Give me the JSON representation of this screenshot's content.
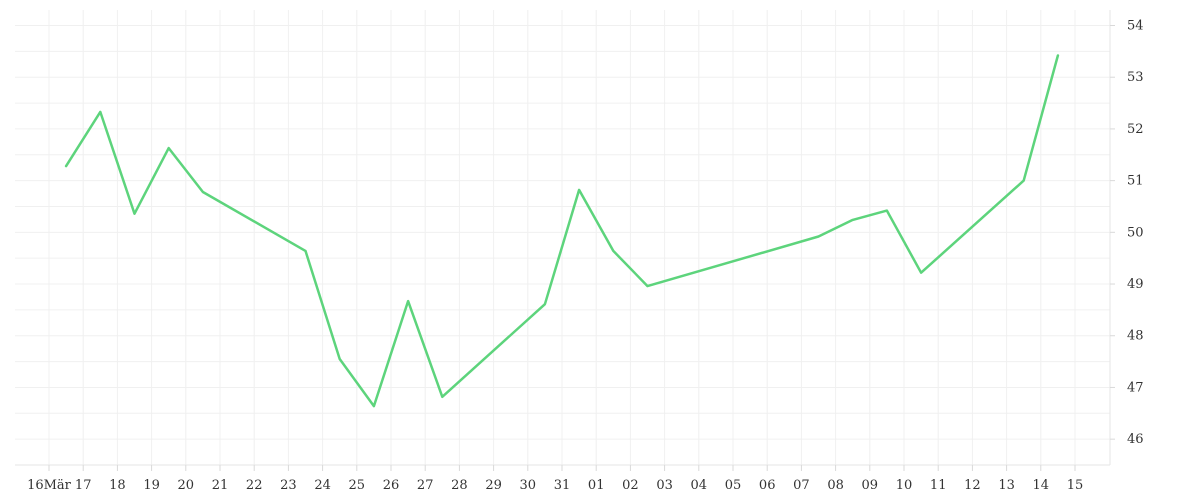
{
  "chart_data": {
    "type": "line",
    "title": "",
    "xlabel": "",
    "ylabel": "",
    "x_tick_labels": [
      "16Mär",
      "17",
      "18",
      "19",
      "20",
      "21",
      "22",
      "23",
      "24",
      "25",
      "26",
      "27",
      "28",
      "29",
      "30",
      "31",
      "01",
      "02",
      "03",
      "04",
      "05",
      "06",
      "07",
      "08",
      "09",
      "10",
      "11",
      "12",
      "13",
      "14",
      "15"
    ],
    "y_ticks": [
      46,
      47,
      48,
      49,
      50,
      51,
      52,
      53,
      54
    ],
    "ylim": [
      45.5,
      54.3
    ],
    "grid": true,
    "legend": "none",
    "series": [
      {
        "color": "#5dd47c",
        "points": [
          {
            "x": "2021-03-16",
            "y": 51.28
          },
          {
            "x": "2021-03-17",
            "y": 52.33
          },
          {
            "x": "2021-03-18",
            "y": 50.36
          },
          {
            "x": "2021-03-19",
            "y": 51.63
          },
          {
            "x": "2021-03-20",
            "y": 50.78
          },
          {
            "x": "2021-03-23",
            "y": 49.64
          },
          {
            "x": "2021-03-24",
            "y": 47.55
          },
          {
            "x": "2021-03-25",
            "y": 46.64
          },
          {
            "x": "2021-03-26",
            "y": 48.67
          },
          {
            "x": "2021-03-27",
            "y": 46.82
          },
          {
            "x": "2021-03-30",
            "y": 48.61
          },
          {
            "x": "2021-03-31",
            "y": 50.82
          },
          {
            "x": "2021-04-01",
            "y": 49.64
          },
          {
            "x": "2021-04-02",
            "y": 48.96
          },
          {
            "x": "2021-04-07",
            "y": 49.92
          },
          {
            "x": "2021-04-08",
            "y": 50.24
          },
          {
            "x": "2021-04-09",
            "y": 50.42
          },
          {
            "x": "2021-04-10",
            "y": 49.22
          },
          {
            "x": "2021-04-13",
            "y": 51.0
          },
          {
            "x": "2021-04-14",
            "y": 53.42
          }
        ]
      }
    ]
  }
}
